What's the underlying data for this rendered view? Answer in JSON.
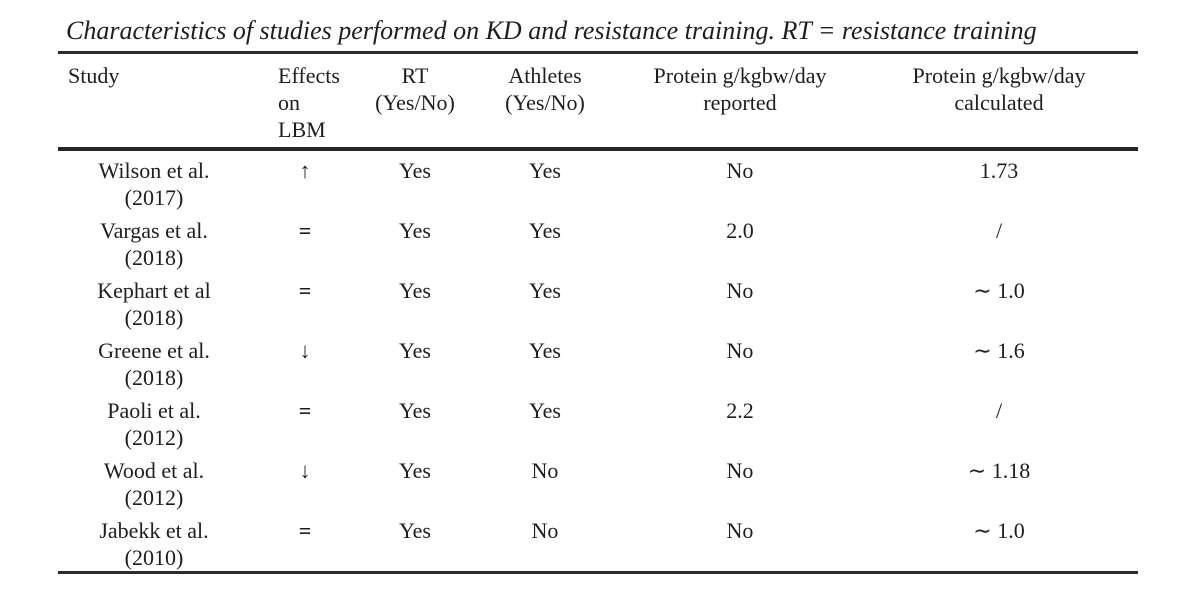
{
  "caption": "Characteristics of studies performed on KD and resistance training. RT = resistance training",
  "table": {
    "headers": [
      {
        "lines": [
          "Study"
        ]
      },
      {
        "lines": [
          "Effects",
          "on",
          "LBM"
        ]
      },
      {
        "lines": [
          "RT",
          "(Yes/No)"
        ]
      },
      {
        "lines": [
          "Athletes",
          "(Yes/No)"
        ]
      },
      {
        "lines": [
          "Protein g/kgbw/day",
          "reported"
        ]
      },
      {
        "lines": [
          "Protein g/kgbw/day",
          "calculated"
        ]
      }
    ],
    "rows": [
      {
        "study": "Wilson et al.",
        "year": "(2017)",
        "effect_on_lbm": "↑",
        "rt": "Yes",
        "athletes": "Yes",
        "protein_reported": "No",
        "protein_calculated": "1.73"
      },
      {
        "study": "Vargas et al.",
        "year": "(2018)",
        "effect_on_lbm": "=",
        "rt": "Yes",
        "athletes": "Yes",
        "protein_reported": "2.0",
        "protein_calculated": "/"
      },
      {
        "study": "Kephart et al",
        "year": "(2018)",
        "effect_on_lbm": "=",
        "rt": "Yes",
        "athletes": "Yes",
        "protein_reported": "No",
        "protein_calculated": "∼ 1.0"
      },
      {
        "study": "Greene et al.",
        "year": "(2018)",
        "effect_on_lbm": "↓",
        "rt": "Yes",
        "athletes": "Yes",
        "protein_reported": "No",
        "protein_calculated": "∼ 1.6"
      },
      {
        "study": "Paoli et al.",
        "year": "(2012)",
        "effect_on_lbm": "=",
        "rt": "Yes",
        "athletes": "Yes",
        "protein_reported": "2.2",
        "protein_calculated": "/"
      },
      {
        "study": "Wood et al.",
        "year": "(2012)",
        "effect_on_lbm": "↓",
        "rt": "Yes",
        "athletes": "No",
        "protein_reported": "No",
        "protein_calculated": "∼ 1.18"
      },
      {
        "study": "Jabekk et al.",
        "year": "(2010)",
        "effect_on_lbm": "=",
        "rt": "Yes",
        "athletes": "No",
        "protein_reported": "No",
        "protein_calculated": "∼ 1.0"
      }
    ]
  },
  "colors": {
    "text": "#1e1e1e",
    "rule": "#2b2b2b",
    "background": "#ffffff"
  }
}
